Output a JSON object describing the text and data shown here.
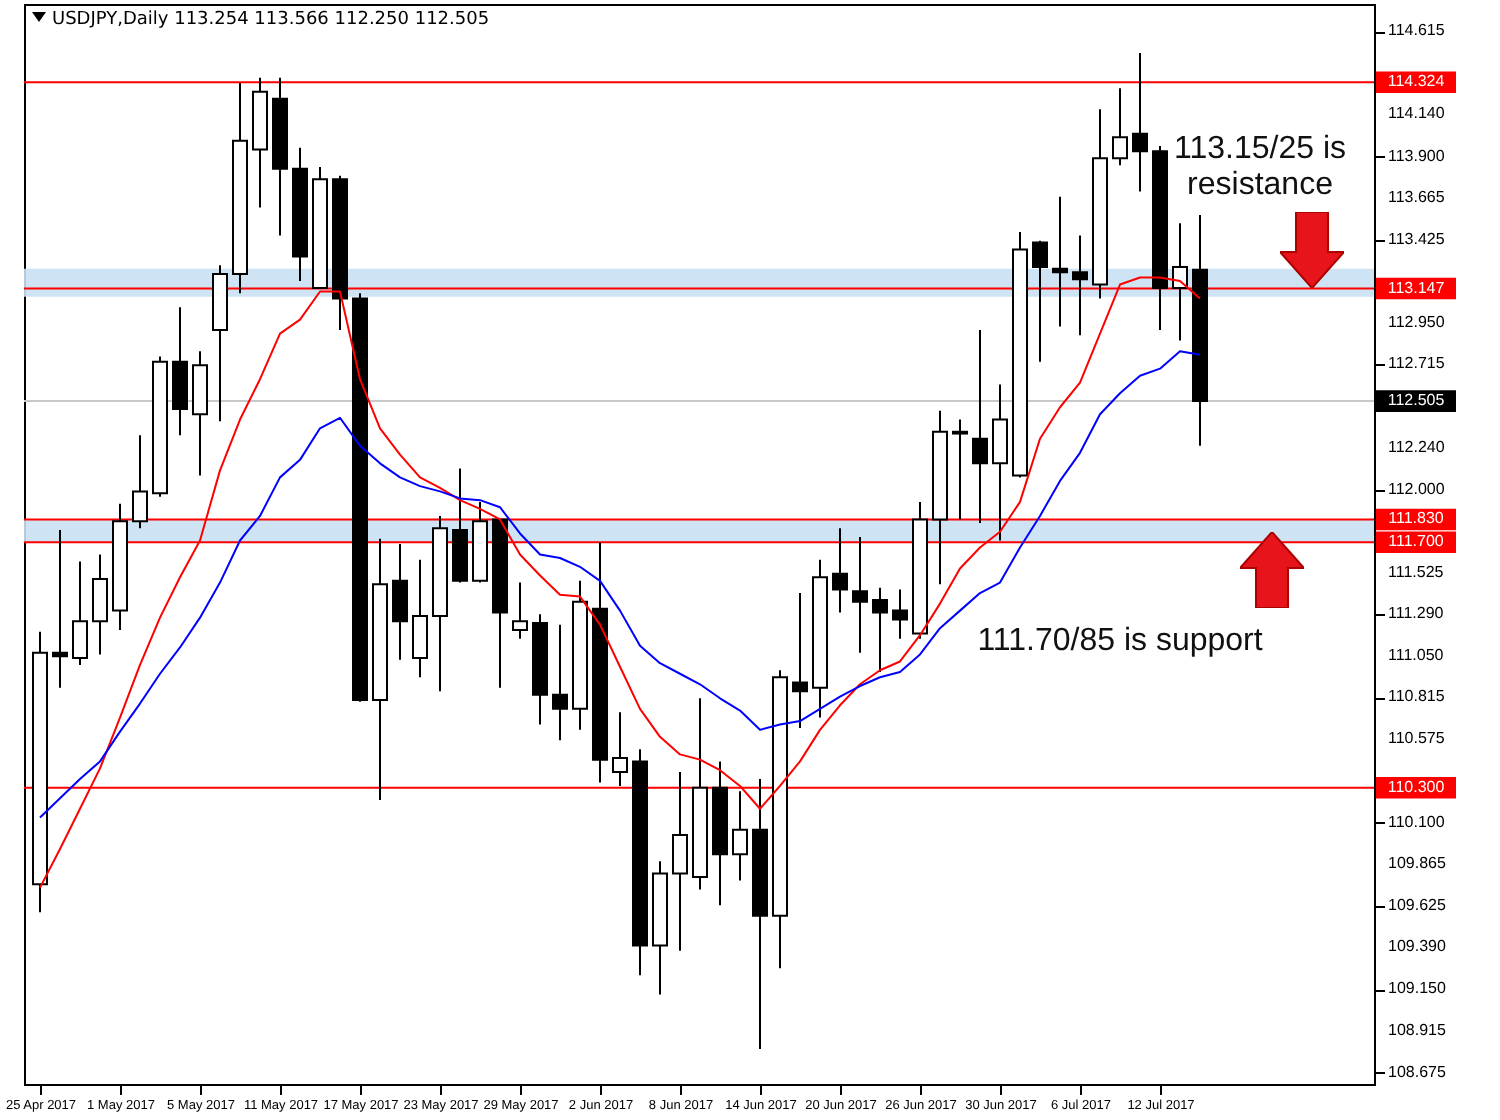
{
  "chart_data": {
    "type": "candlestick",
    "title": "USDJPY,Daily  113.254 113.566 112.250 112.505",
    "categories": [
      "25 Apr 2017",
      null,
      null,
      null,
      "1 May 2017",
      null,
      null,
      null,
      "5 May 2017",
      null,
      null,
      null,
      "11 May 2017",
      null,
      null,
      null,
      "17 May 2017",
      null,
      null,
      null,
      "23 May 2017",
      null,
      null,
      null,
      "29 May 2017",
      null,
      null,
      null,
      "2 Jun 2017",
      null,
      null,
      null,
      "8 Jun 2017",
      null,
      null,
      null,
      "14 Jun 2017",
      null,
      null,
      null,
      "20 Jun 2017",
      null,
      null,
      null,
      "26 Jun 2017",
      null,
      null,
      null,
      "30 Jun 2017",
      null,
      null,
      null,
      "6 Jul 2017",
      null,
      null,
      null,
      "12 Jul 2017",
      null,
      null
    ],
    "ohlc": [
      [
        109.75,
        111.19,
        109.59,
        111.07
      ],
      [
        111.07,
        111.77,
        110.87,
        111.05
      ],
      [
        111.04,
        111.59,
        111.0,
        111.25
      ],
      [
        111.25,
        111.63,
        111.06,
        111.49
      ],
      [
        111.31,
        111.92,
        111.2,
        111.82
      ],
      [
        111.82,
        112.31,
        111.78,
        111.99
      ],
      [
        111.98,
        112.76,
        111.96,
        112.73
      ],
      [
        112.73,
        113.04,
        112.31,
        112.46
      ],
      [
        112.43,
        112.79,
        112.08,
        112.71
      ],
      [
        112.91,
        113.28,
        112.39,
        113.23
      ],
      [
        113.23,
        114.32,
        113.12,
        113.99
      ],
      [
        113.94,
        114.35,
        113.61,
        114.27
      ],
      [
        114.23,
        114.35,
        113.45,
        113.83
      ],
      [
        113.83,
        113.95,
        113.19,
        113.33
      ],
      [
        113.15,
        113.84,
        113.15,
        113.77
      ],
      [
        113.77,
        113.79,
        112.91,
        113.09
      ],
      [
        113.09,
        113.12,
        110.79,
        110.8
      ],
      [
        110.8,
        111.72,
        110.23,
        111.46
      ],
      [
        111.48,
        111.69,
        111.03,
        111.25
      ],
      [
        111.04,
        111.6,
        110.93,
        111.28
      ],
      [
        111.28,
        111.85,
        110.85,
        111.78
      ],
      [
        111.77,
        112.12,
        111.47,
        111.48
      ],
      [
        111.48,
        111.93,
        111.47,
        111.82
      ],
      [
        111.83,
        111.83,
        110.87,
        111.3
      ],
      [
        111.2,
        111.47,
        111.15,
        111.25
      ],
      [
        111.24,
        111.29,
        110.66,
        110.83
      ],
      [
        110.83,
        111.23,
        110.57,
        110.75
      ],
      [
        110.75,
        111.48,
        110.63,
        111.36
      ],
      [
        111.32,
        111.7,
        110.33,
        110.46
      ],
      [
        110.39,
        110.73,
        110.31,
        110.47
      ],
      [
        110.45,
        110.52,
        109.23,
        109.4
      ],
      [
        109.4,
        109.88,
        109.12,
        109.81
      ],
      [
        109.81,
        110.39,
        109.37,
        110.03
      ],
      [
        109.79,
        110.81,
        109.72,
        110.3
      ],
      [
        110.3,
        110.45,
        109.63,
        109.92
      ],
      [
        109.92,
        110.28,
        109.77,
        110.06
      ],
      [
        110.06,
        110.35,
        108.81,
        109.57
      ],
      [
        109.57,
        110.97,
        109.27,
        110.93
      ],
      [
        110.9,
        111.41,
        110.64,
        110.85
      ],
      [
        110.87,
        111.6,
        110.7,
        111.5
      ],
      [
        111.52,
        111.78,
        111.3,
        111.43
      ],
      [
        111.42,
        111.73,
        111.07,
        111.36
      ],
      [
        111.37,
        111.44,
        110.96,
        111.3
      ],
      [
        111.31,
        111.43,
        111.15,
        111.26
      ],
      [
        111.18,
        111.93,
        111.15,
        111.83
      ],
      [
        111.83,
        112.45,
        111.46,
        112.33
      ],
      [
        112.33,
        112.4,
        111.83,
        112.32
      ],
      [
        112.29,
        112.91,
        111.81,
        112.15
      ],
      [
        112.15,
        112.6,
        111.71,
        112.4
      ],
      [
        112.08,
        113.47,
        112.07,
        113.37
      ],
      [
        113.41,
        113.42,
        112.73,
        113.27
      ],
      [
        113.26,
        113.67,
        112.93,
        113.24
      ],
      [
        113.24,
        113.45,
        112.88,
        113.2
      ],
      [
        113.17,
        114.17,
        113.09,
        113.89
      ],
      [
        113.89,
        114.29,
        113.85,
        114.01
      ],
      [
        114.03,
        114.49,
        113.7,
        113.93
      ],
      [
        113.93,
        113.96,
        112.91,
        113.15
      ],
      [
        113.15,
        113.52,
        112.85,
        113.27
      ],
      [
        113.254,
        113.566,
        112.25,
        112.505
      ]
    ],
    "series": [
      {
        "type": "line",
        "color": "#ff0000",
        "values": [
          109.73,
          109.95,
          110.18,
          110.41,
          110.7,
          111.0,
          111.27,
          111.5,
          111.71,
          112.11,
          112.4,
          112.63,
          112.89,
          112.97,
          113.13,
          113.13,
          112.63,
          112.35,
          112.2,
          112.07,
          112.01,
          111.94,
          111.89,
          111.83,
          111.63,
          111.51,
          111.4,
          111.39,
          111.23,
          110.99,
          110.75,
          110.59,
          110.49,
          110.46,
          110.4,
          110.31,
          110.18,
          110.31,
          110.45,
          110.63,
          110.77,
          110.89,
          110.97,
          111.02,
          111.17,
          111.35,
          111.55,
          111.67,
          111.76,
          111.93,
          112.29,
          112.47,
          112.61,
          112.89,
          113.17,
          113.21,
          113.21,
          113.19,
          113.09
        ]
      },
      {
        "type": "line",
        "color": "#0000ff",
        "values": [
          110.13,
          110.24,
          110.35,
          110.45,
          110.62,
          110.78,
          110.95,
          111.1,
          111.27,
          111.47,
          111.71,
          111.85,
          112.07,
          112.17,
          112.35,
          112.41,
          112.25,
          112.15,
          112.07,
          112.02,
          111.99,
          111.95,
          111.94,
          111.9,
          111.75,
          111.63,
          111.61,
          111.56,
          111.48,
          111.31,
          111.11,
          111.01,
          110.95,
          110.89,
          110.81,
          110.74,
          110.63,
          110.66,
          110.68,
          110.75,
          110.82,
          110.88,
          110.93,
          110.96,
          111.06,
          111.21,
          111.31,
          111.41,
          111.47,
          111.67,
          111.85,
          112.05,
          112.21,
          112.43,
          112.55,
          112.65,
          112.69,
          112.79,
          112.77
        ]
      }
    ],
    "ylim": [
      108.61,
      114.77
    ],
    "yticks": [
      {
        "value": 114.615,
        "label": "114.615"
      },
      {
        "value": 114.14,
        "label": "114.140"
      },
      {
        "value": 113.9,
        "label": "113.900"
      },
      {
        "value": 113.665,
        "label": "113.665"
      },
      {
        "value": 113.425,
        "label": "113.425"
      },
      {
        "value": 112.95,
        "label": "112.950"
      },
      {
        "value": 112.715,
        "label": "112.715"
      },
      {
        "value": 112.24,
        "label": "112.240"
      },
      {
        "value": 112.0,
        "label": "112.000"
      },
      {
        "value": 111.525,
        "label": "111.525"
      },
      {
        "value": 111.29,
        "label": "111.290"
      },
      {
        "value": 111.05,
        "label": "111.050"
      },
      {
        "value": 110.815,
        "label": "110.815"
      },
      {
        "value": 110.575,
        "label": "110.575"
      },
      {
        "value": 110.1,
        "label": "110.100"
      },
      {
        "value": 109.865,
        "label": "109.865"
      },
      {
        "value": 109.625,
        "label": "109.625"
      },
      {
        "value": 109.39,
        "label": "109.390"
      },
      {
        "value": 109.15,
        "label": "109.150"
      },
      {
        "value": 108.915,
        "label": "108.915"
      },
      {
        "value": 108.675,
        "label": "108.675"
      }
    ],
    "ref_lines": [
      {
        "axis": "y",
        "value": 114.324,
        "label": "114.324",
        "color": "#ff0000"
      },
      {
        "axis": "y",
        "value": 113.147,
        "label": "113.147",
        "color": "#ff0000"
      },
      {
        "axis": "y",
        "value": 112.505,
        "label": "112.505",
        "color": "#c8c8c8"
      },
      {
        "axis": "y",
        "value": 111.83,
        "label": "111.830",
        "color": "#ff0000"
      },
      {
        "axis": "y",
        "value": 111.7,
        "label": "111.700",
        "color": "#ff0000"
      },
      {
        "axis": "y",
        "value": 110.3,
        "label": "110.300",
        "color": "#ff0000"
      }
    ],
    "bands": [
      {
        "axis": "y",
        "from": 111.7,
        "to": 111.83,
        "color": "#c9e0f2"
      },
      {
        "axis": "y",
        "from": 113.1,
        "to": 113.26,
        "color": "#c9e0f2"
      }
    ],
    "annotations": [
      "113.15/25 is resistance",
      "111.70/85 is support"
    ]
  }
}
